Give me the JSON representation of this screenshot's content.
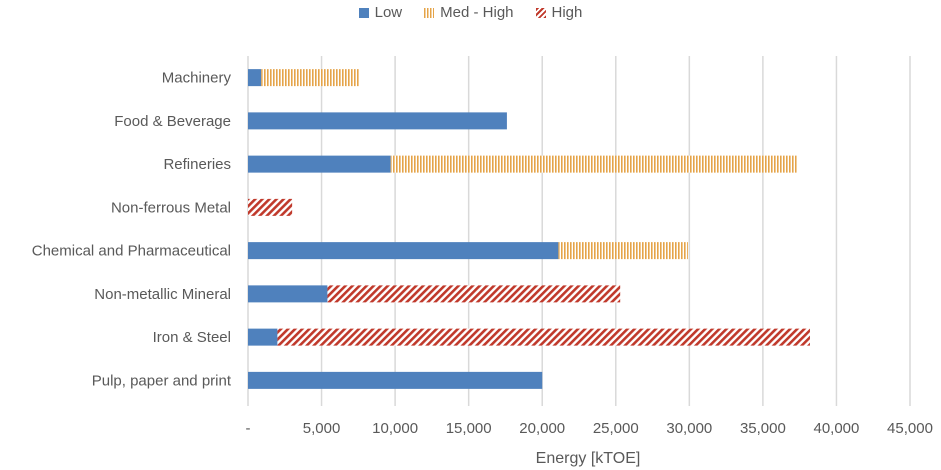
{
  "chart_data": {
    "type": "bar",
    "orientation": "horizontal",
    "stacked": true,
    "categories": [
      "Machinery",
      "Food & Beverage",
      "Refineries",
      "Non-ferrous Metal",
      "Chemical and Pharmaceutical",
      "Non-metallic Mineral",
      "Iron & Steel",
      "Pulp, paper and print"
    ],
    "series": [
      {
        "name": "Low",
        "values": [
          900,
          17600,
          9700,
          0,
          21100,
          5400,
          2000,
          20000
        ],
        "color": "#4f81bd",
        "pattern": "solid"
      },
      {
        "name": "Med - High",
        "values": [
          6700,
          0,
          27600,
          0,
          8800,
          0,
          0,
          0
        ],
        "color": "#e5a449",
        "pattern": "vertical-stripes"
      },
      {
        "name": "High",
        "values": [
          0,
          0,
          0,
          3000,
          0,
          19900,
          36200,
          0
        ],
        "color": "#c0392b",
        "pattern": "diagonal-stripes"
      }
    ],
    "xlabel": "Energy [kTOE]",
    "ylabel": "",
    "xlim": [
      0,
      45000
    ],
    "ticks": [
      "-",
      "5,000",
      "10,000",
      "15,000",
      "20,000",
      "25,000",
      "30,000",
      "35,000",
      "40,000",
      "45,000"
    ],
    "grid": "vertical",
    "legend_position": "top"
  }
}
